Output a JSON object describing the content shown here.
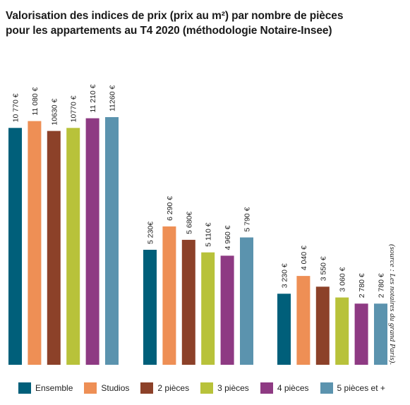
{
  "title_line1": "Valorisation des indices de prix (prix au m²) par nombre de pièces",
  "title_line2": "pour les appartements au T4 2020 (méthodologie Notaire-Insee)",
  "source": "(source : Les notaires du grand Paris).",
  "colors": {
    "Ensemble": "#005f7a",
    "Studios": "#ee8f55",
    "2 pièces": "#8c4129",
    "3 pièces": "#b8c23a",
    "4 pièces": "#8e3a83",
    "5 pièces et +": "#5b93ae"
  },
  "chart_data": {
    "type": "bar",
    "title": "Valorisation des indices de prix (prix au m²) par nombre de pièces pour les appartements au T4 2020 (méthodologie Notaire-Insee)",
    "categories": [
      "",
      "",
      ""
    ],
    "ylim": [
      0,
      12000
    ],
    "grid": false,
    "legend_position": "bottom",
    "series": [
      {
        "name": "Ensemble",
        "values": [
          10770,
          5230,
          3230
        ],
        "labels": [
          "10 770 €",
          "5 230€",
          "3 230 €"
        ]
      },
      {
        "name": "Studios",
        "values": [
          11080,
          6290,
          4040
        ],
        "labels": [
          "11 080 €",
          "6 290 €",
          "4 040 €"
        ]
      },
      {
        "name": "2 pièces",
        "values": [
          10630,
          5680,
          3550
        ],
        "labels": [
          "10630 €",
          "5 680€",
          "3 550 €"
        ]
      },
      {
        "name": "3 pièces",
        "values": [
          10770,
          5110,
          3060
        ],
        "labels": [
          "10770 €",
          "5 110 €",
          "3 060 €"
        ]
      },
      {
        "name": "4 pièces",
        "values": [
          11210,
          4960,
          2780
        ],
        "labels": [
          "11 210 €",
          "4 960 €",
          "2 780 €"
        ]
      },
      {
        "name": "5 pièces et +",
        "values": [
          11260,
          5790,
          2780
        ],
        "labels": [
          "11260 €",
          "5 790 €",
          "2 780 €"
        ]
      }
    ]
  }
}
